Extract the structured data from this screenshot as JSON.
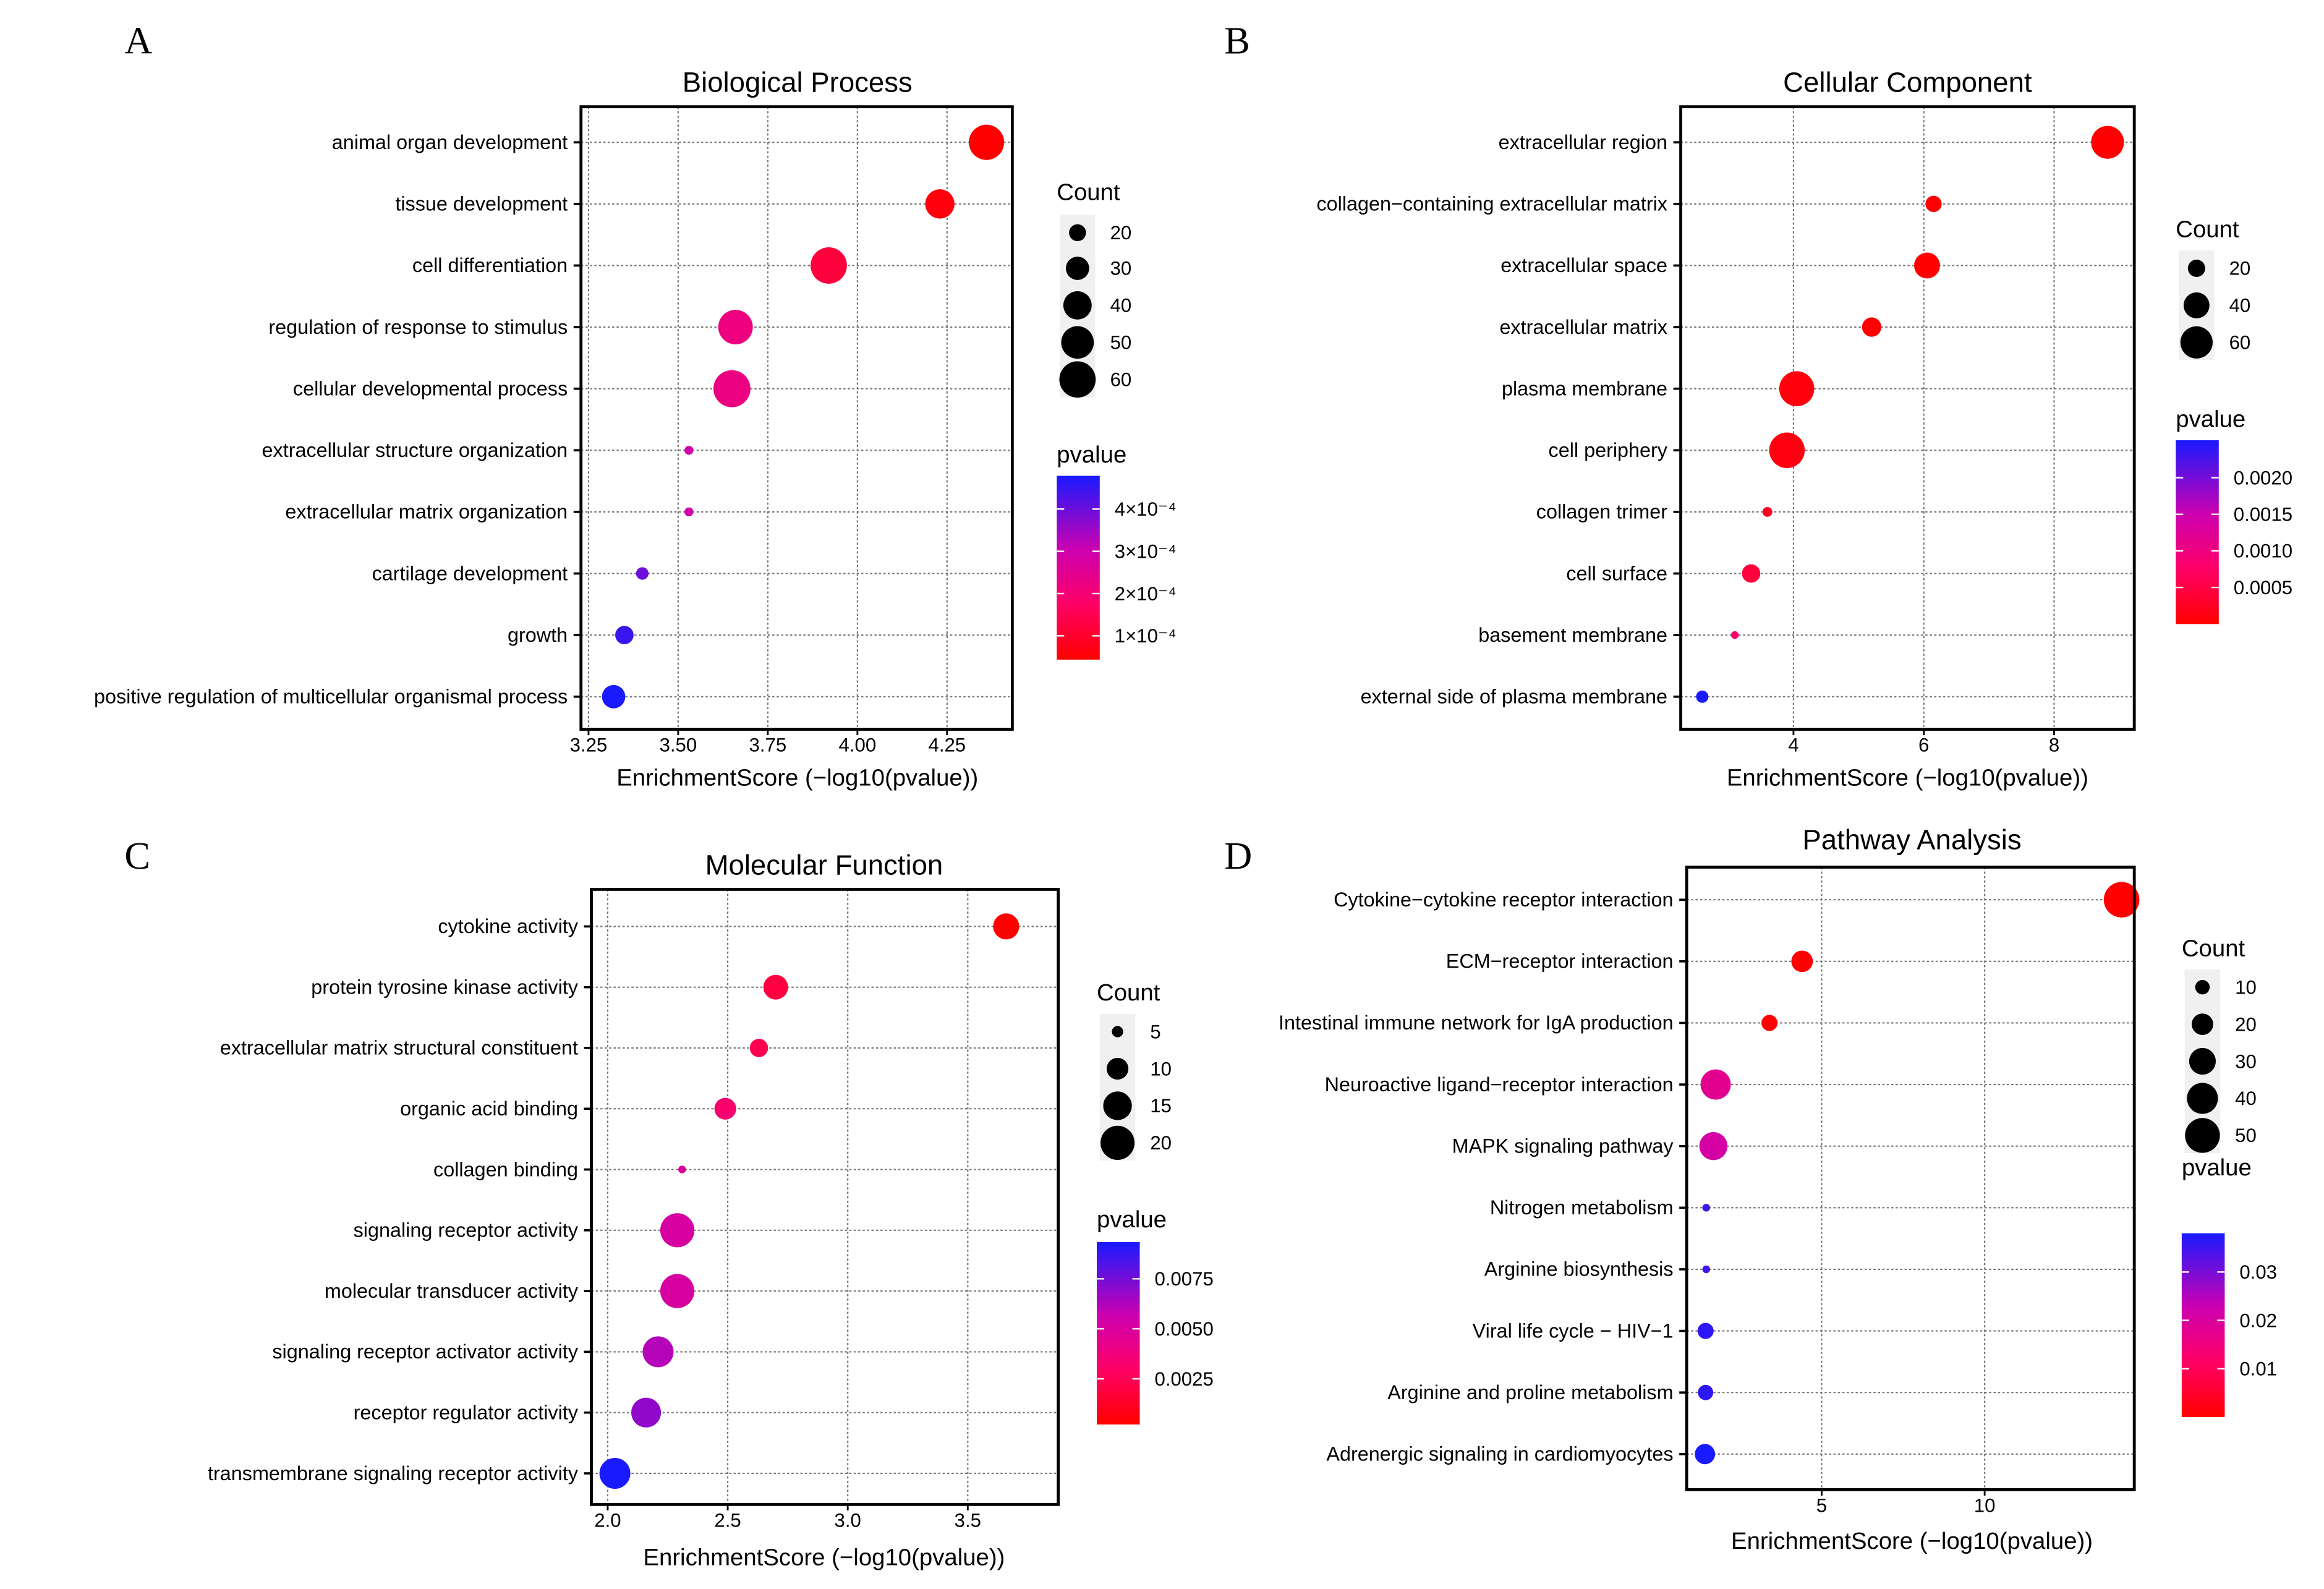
{
  "chart_data": [
    {
      "type": "scatter",
      "panel_letter": "A",
      "title": "Biological Process",
      "xlabel": "EnrichmentScore (−log10(pvalue))",
      "xticks": [
        3.25,
        3.5,
        3.75,
        4.0,
        4.25
      ],
      "xtick_labels": [
        "3.25",
        "3.50",
        "3.75",
        "4.00",
        "4.25"
      ],
      "xlim": [
        3.229,
        4.432
      ],
      "grid": true,
      "terms": [
        "animal organ development",
        "tissue development",
        "cell differentiation",
        "regulation of response to stimulus",
        "cellular developmental process",
        "extracellular structure organization",
        "extracellular matrix organization",
        "cartilage development",
        "growth",
        "positive regulation of multicellular organismal process"
      ],
      "x": [
        4.36,
        4.23,
        3.92,
        3.66,
        3.65,
        3.53,
        3.53,
        3.4,
        3.35,
        3.32
      ],
      "count": [
        57,
        42,
        60,
        55,
        62,
        12,
        12,
        15,
        22,
        30
      ],
      "size_legend": {
        "title": "Count",
        "breaks": [
          20,
          30,
          40,
          50,
          60
        ],
        "labels": [
          "20",
          "30",
          "40",
          "50",
          "60"
        ]
      },
      "color_legend": {
        "title": "pvalue",
        "breaks": [
          0.0004,
          0.0003,
          0.0002,
          0.0001
        ],
        "labels": [
          "4×10⁻⁴",
          "3×10⁻⁴",
          "2×10⁻⁴",
          "1×10⁻⁴"
        ],
        "low_color": "#ff0000",
        "high_color": "#0000ff"
      },
      "legend_position": "right"
    },
    {
      "type": "scatter",
      "panel_letter": "B",
      "title": "Cellular Component",
      "xlabel": "EnrichmentScore (−log10(pvalue))",
      "xticks": [
        4,
        6,
        8
      ],
      "xtick_labels": [
        "4",
        "6",
        "8"
      ],
      "xlim": [
        2.27,
        9.23
      ],
      "grid": true,
      "terms": [
        "extracellular region",
        "collagen−containing extracellular matrix",
        "extracellular space",
        "extracellular matrix",
        "plasma membrane",
        "cell periphery",
        "collagen trimer",
        "cell surface",
        "basement membrane",
        "external side of plasma membrane"
      ],
      "x": [
        8.82,
        6.15,
        6.05,
        5.2,
        4.05,
        3.9,
        3.6,
        3.35,
        3.1,
        2.6
      ],
      "count": [
        62,
        18,
        40,
        24,
        70,
        72,
        9,
        22,
        7,
        12
      ],
      "size_legend": {
        "title": "Count",
        "breaks": [
          20,
          40,
          60
        ],
        "labels": [
          "20",
          "40",
          "60"
        ]
      },
      "color_legend": {
        "title": "pvalue",
        "breaks": [
          0.002,
          0.0015,
          0.001,
          0.0005
        ],
        "labels": [
          "0.0020",
          "0.0015",
          "0.0010",
          "0.0005"
        ],
        "low_color": "#ff0000",
        "high_color": "#0000ff"
      },
      "legend_position": "right"
    },
    {
      "type": "scatter",
      "panel_letter": "C",
      "title": "Molecular Function",
      "xlabel": "EnrichmentScore (−log10(pvalue))",
      "xticks": [
        2.0,
        2.5,
        3.0,
        3.5
      ],
      "xtick_labels": [
        "2.0",
        "2.5",
        "3.0",
        "3.5"
      ],
      "xlim": [
        1.932,
        3.877
      ],
      "grid": true,
      "terms": [
        "cytokine activity",
        "protein tyrosine kinase activity",
        "extracellular matrix structural constituent",
        "organic acid binding",
        "collagen binding",
        "signaling receptor activity",
        "molecular transducer activity",
        "signaling receptor activator activity",
        "receptor regulator activity",
        "transmembrane signaling receptor activity"
      ],
      "x": [
        3.66,
        2.7,
        2.63,
        2.49,
        2.31,
        2.29,
        2.29,
        2.21,
        2.16,
        2.03
      ],
      "count": [
        13,
        12,
        8,
        10,
        4,
        20,
        20,
        17,
        16,
        17
      ],
      "size_legend": {
        "title": "Count",
        "breaks": [
          5,
          10,
          15,
          20
        ],
        "labels": [
          "5",
          "10",
          "15",
          "20"
        ]
      },
      "color_legend": {
        "title": "pvalue",
        "breaks": [
          0.0075,
          0.005,
          0.0025
        ],
        "labels": [
          "0.0075",
          "0.0050",
          "0.0025"
        ],
        "low_color": "#ff0000",
        "high_color": "#0000ff"
      },
      "legend_position": "right"
    },
    {
      "type": "scatter",
      "panel_letter": "D",
      "title": "Pathway Analysis",
      "xlabel": "EnrichmentScore (−log10(pvalue))",
      "xticks": [
        5,
        10
      ],
      "xtick_labels": [
        "5",
        "10"
      ],
      "xlim": [
        0.86,
        14.59
      ],
      "grid": true,
      "terms": [
        "Cytokine−cytokine receptor interaction",
        "ECM−receptor interaction",
        "Intestinal immune network for IgA production",
        "Neuroactive ligand−receptor interaction",
        "MAPK signaling pathway",
        "Nitrogen metabolism",
        "Arginine biosynthesis",
        "Viral life cycle − HIV−1",
        "Arginine and proline metabolism",
        "Adrenergic signaling in cardiomyocytes"
      ],
      "x": [
        14.2,
        4.4,
        3.4,
        1.75,
        1.68,
        1.46,
        1.46,
        1.44,
        1.44,
        1.42
      ],
      "count": [
        52,
        20,
        12,
        38,
        33,
        4,
        4,
        12,
        11,
        18
      ],
      "size_legend": {
        "title": "Count",
        "breaks": [
          10,
          20,
          30,
          40,
          50
        ],
        "labels": [
          "10",
          "20",
          "30",
          "40",
          "50"
        ]
      },
      "color_legend": {
        "title": "pvalue",
        "breaks": [
          0.03,
          0.02,
          0.01
        ],
        "labels": [
          "0.03",
          "0.02",
          "0.01"
        ],
        "low_color": "#ff0000",
        "high_color": "#0000ff"
      },
      "legend_position": "right"
    }
  ]
}
